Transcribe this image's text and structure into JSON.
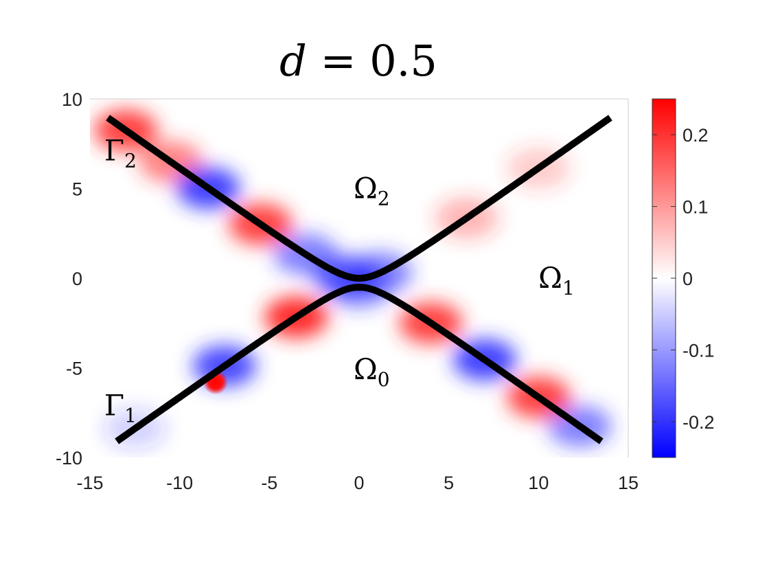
{
  "chart_data": {
    "type": "heatmap",
    "title": "d = 0.5",
    "title_var": "d",
    "title_value": "0.5",
    "xlim": [
      -15,
      15
    ],
    "ylim": [
      -10,
      10
    ],
    "x_ticks": [
      "-15",
      "-10",
      "-5",
      "0",
      "5",
      "10",
      "15"
    ],
    "y_ticks": [
      "10",
      "5",
      "0",
      "-5",
      "-10"
    ],
    "colorbar": {
      "range": [
        -0.25,
        0.25
      ],
      "colors": [
        "#0000ff",
        "#ffffff",
        "#ff0000"
      ],
      "ticks": [
        "0.2",
        "0.1",
        "0",
        "-0.1",
        "-0.2"
      ]
    },
    "curves": [
      {
        "name": "upper",
        "equation": "y = sqrt(x^2/2 + 1) - 1",
        "x_range": [
          -14,
          14
        ]
      },
      {
        "name": "lower",
        "equation": "y = -sqrt(x^2/2 + 1) + 0.5",
        "x_range": [
          -13.5,
          13.5
        ]
      }
    ],
    "hot_spot": {
      "x": -8,
      "y": -5.8,
      "value": 0.25
    },
    "region_labels": [
      {
        "base": "Ω",
        "sub": "2",
        "x": 0.7,
        "y": 5
      },
      {
        "base": "Ω",
        "sub": "1",
        "x": 11,
        "y": 0
      },
      {
        "base": "Ω",
        "sub": "0",
        "x": 0.7,
        "y": -5.1
      },
      {
        "base": "Γ",
        "sub": "2",
        "x": -13.3,
        "y": 7.1
      },
      {
        "base": "Γ",
        "sub": "1",
        "x": -13.3,
        "y": -7.1
      }
    ]
  }
}
